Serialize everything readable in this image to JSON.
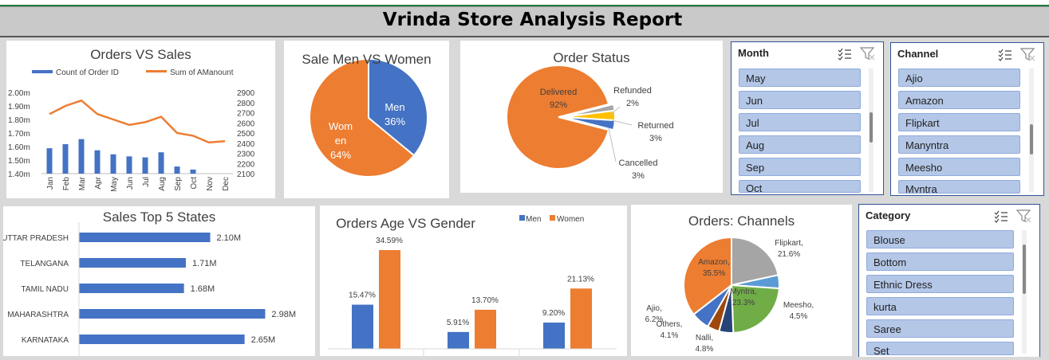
{
  "report_title": "Vrinda Store Analysis Report",
  "colors": {
    "blue": "#4472c4",
    "orange": "#ed7d31",
    "gray": "#a5a5a5",
    "yellow": "#ffc000",
    "lightblue": "#5b9bd5",
    "green": "#70ad47",
    "darkblue": "#264478",
    "brown": "#9e480e"
  },
  "slicers": {
    "month": {
      "title": "Month",
      "items": [
        "May",
        "Jun",
        "Jul",
        "Aug",
        "Sep",
        "Oct"
      ]
    },
    "channel": {
      "title": "Channel",
      "items": [
        "Ajio",
        "Amazon",
        "Flipkart",
        "Manyntra",
        "Meesho",
        "Myntra"
      ]
    },
    "category": {
      "title": "Category",
      "items": [
        "Blouse",
        "Bottom",
        "Ethnic Dress",
        "kurta",
        "Saree",
        "Set"
      ]
    }
  },
  "chart_data": [
    {
      "id": "orders_vs_sales",
      "type": "bar",
      "title": "Orders VS Sales",
      "categories": [
        "Jan",
        "Feb",
        "Mar",
        "Apr",
        "May",
        "Jun",
        "Jul",
        "Aug",
        "Sep",
        "Oct",
        "Nov",
        "Dec"
      ],
      "series": [
        {
          "name": "Count of Order ID",
          "type": "bar",
          "axis": "left",
          "values": [
            2350,
            2390,
            2440,
            2330,
            2290,
            2270,
            2260,
            2310,
            2170,
            2140,
            2100,
            2100
          ]
        },
        {
          "name": "Sum of AManount",
          "type": "line",
          "axis": "right",
          "values": [
            1.84,
            1.9,
            1.94,
            1.84,
            1.8,
            1.76,
            1.78,
            1.82,
            1.7,
            1.68,
            1.63,
            1.64
          ]
        }
      ],
      "left_ticks": [
        "2.00m",
        "1.90m",
        "1.80m",
        "1.70m",
        "1.60m",
        "1.50m",
        "1.40m"
      ],
      "right_ticks": [
        "2900",
        "2800",
        "2700",
        "2600",
        "2500",
        "2400",
        "2300",
        "2200",
        "2100"
      ],
      "legend_position": "top"
    },
    {
      "id": "men_vs_women",
      "type": "pie",
      "title": "Sale Men VS Women",
      "slices": [
        {
          "name": "Men",
          "value": 36,
          "label_lines": [
            "Men",
            "36%"
          ]
        },
        {
          "name": "Women",
          "value": 64,
          "label_lines": [
            "Wom",
            "en",
            "64%"
          ]
        }
      ]
    },
    {
      "id": "order_status",
      "type": "pie",
      "title": "Order Status",
      "slices": [
        {
          "name": "Delivered",
          "value": 92,
          "label_lines": [
            "Delivered",
            "92%"
          ]
        },
        {
          "name": "Refunded",
          "value": 2,
          "label_lines": [
            "Refunded",
            "2%"
          ]
        },
        {
          "name": "Returned",
          "value": 3,
          "label_lines": [
            "Returned",
            "3%"
          ]
        },
        {
          "name": "Cancelled",
          "value": 3,
          "label_lines": [
            "Cancelled",
            "3%"
          ]
        }
      ]
    },
    {
      "id": "top_states",
      "type": "bar",
      "orientation": "horizontal",
      "title": "Sales Top 5 States",
      "categories": [
        "UTTAR PRADESH",
        "TELANGANA",
        "TAMIL NADU",
        "MAHARASHTRA",
        "KARNATAKA"
      ],
      "values": [
        2.1,
        1.71,
        1.68,
        2.98,
        2.65
      ],
      "value_labels": [
        "2.10M",
        "1.71M",
        "1.68M",
        "2.98M",
        "2.65M"
      ]
    },
    {
      "id": "age_vs_gender",
      "type": "bar",
      "title": "Orders Age VS Gender",
      "series": [
        {
          "name": "Men",
          "values": [
            15.47,
            5.91,
            9.2
          ],
          "value_labels": [
            "15.47%",
            "5.91%",
            "9.20%"
          ]
        },
        {
          "name": "Women",
          "values": [
            34.59,
            13.7,
            21.13
          ],
          "value_labels": [
            "34.59%",
            "13.70%",
            "21.13%"
          ]
        }
      ],
      "legend_position": "top-right"
    },
    {
      "id": "channels",
      "type": "pie",
      "title": "Orders: Channels",
      "slices": [
        {
          "name": "Amazon",
          "value": 35.5,
          "label_lines": [
            "Amazon,",
            "35.5%"
          ]
        },
        {
          "name": "Flipkart",
          "value": 21.6,
          "label_lines": [
            "Flipkart,",
            "21.6%"
          ]
        },
        {
          "name": "Meesho",
          "value": 4.5,
          "label_lines": [
            "Meesho,",
            "4.5%"
          ]
        },
        {
          "name": "Myntra",
          "value": 23.3,
          "label_lines": [
            "Myntra,",
            "23.3%"
          ]
        },
        {
          "name": "Nalli",
          "value": 4.8,
          "label_lines": [
            "Nalli,",
            "4.8%"
          ]
        },
        {
          "name": "Others",
          "value": 4.1,
          "label_lines": [
            "Others,",
            "4.1%"
          ]
        },
        {
          "name": "Ajio",
          "value": 6.2,
          "label_lines": [
            "Ajio,",
            "6.2%"
          ]
        }
      ]
    }
  ]
}
